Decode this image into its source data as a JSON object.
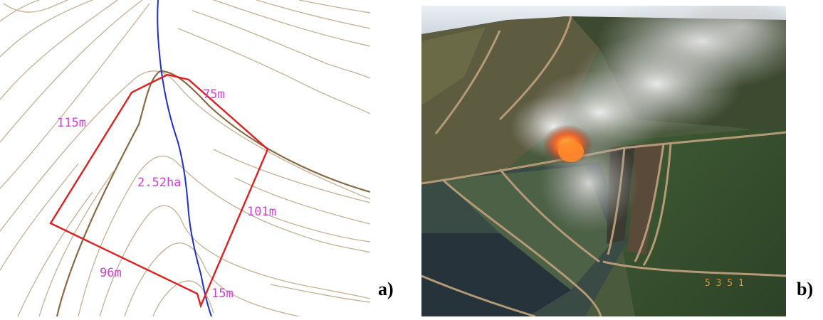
{
  "panels": {
    "a": {
      "label": "a)",
      "map_labels": {
        "side_top": "75m",
        "side_left": "115m",
        "area": "2.52ha",
        "side_right": "101m",
        "side_bottom_left": "96m",
        "side_bottom": "15m"
      },
      "colors": {
        "contour": "#c9b49a",
        "contour_index": "#8a6a44",
        "stream": "#1f2fd0",
        "boundary": "#e02020",
        "label": "#d63fd6"
      }
    },
    "b": {
      "label": "b)",
      "photo_stamp": "5 3 5 1"
    }
  }
}
